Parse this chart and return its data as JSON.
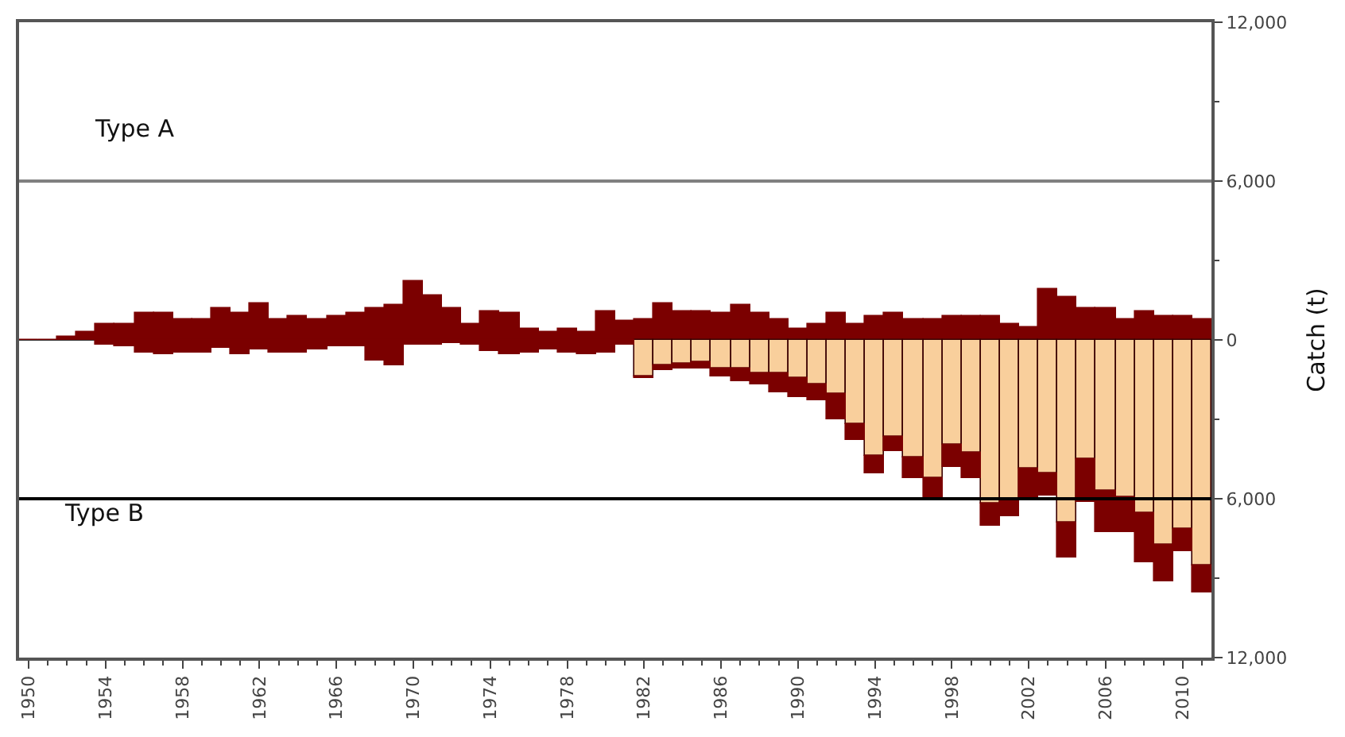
{
  "chart_data": {
    "type": "bar",
    "stacked": true,
    "ylabel": "Catch (t)",
    "x": [
      1950,
      1951,
      1952,
      1953,
      1954,
      1955,
      1956,
      1957,
      1958,
      1959,
      1960,
      1961,
      1962,
      1963,
      1964,
      1965,
      1966,
      1967,
      1968,
      1969,
      1970,
      1971,
      1972,
      1973,
      1974,
      1975,
      1976,
      1977,
      1978,
      1979,
      1980,
      1981,
      1982,
      1983,
      1984,
      1985,
      1986,
      1987,
      1988,
      1989,
      1990,
      1991,
      1992,
      1993,
      1994,
      1995,
      1996,
      1997,
      1998,
      1999,
      2000,
      2001,
      2002,
      2003,
      2004,
      2005,
      2006,
      2007,
      2008,
      2009,
      2010,
      2011
    ],
    "series": [
      {
        "color": "#7b0000",
        "values": [
          0,
          0,
          100,
          300,
          600,
          600,
          1000,
          1000,
          800,
          800,
          1200,
          1000,
          1400,
          800,
          900,
          800,
          900,
          1000,
          1200,
          1300,
          2200,
          1700,
          1200,
          600,
          1100,
          1000,
          400,
          300,
          400,
          300,
          1100,
          700,
          800,
          1400,
          1100,
          1100,
          1000,
          1300,
          1000,
          800,
          400,
          600,
          1000,
          600,
          900,
          1000,
          800,
          800,
          900,
          900,
          900,
          600,
          500,
          1900,
          1600,
          1200,
          1200,
          800,
          1100,
          900,
          900,
          800
        ]
      },
      {
        "color": "#f9cf9c",
        "values": [
          null,
          null,
          null,
          null,
          null,
          null,
          null,
          null,
          null,
          null,
          null,
          null,
          null,
          null,
          null,
          null,
          null,
          null,
          null,
          null,
          null,
          null,
          null,
          null,
          null,
          null,
          null,
          null,
          null,
          null,
          null,
          null,
          -1360,
          -960,
          -920,
          -860,
          -1060,
          -1100,
          -1260,
          -1260,
          -1460,
          -1660,
          -2060,
          -3160,
          -4360,
          -3660,
          -4460,
          -5200,
          -3960,
          -4260,
          -6160,
          -6000,
          -4860,
          -5060,
          -6920,
          -4520,
          -5720,
          -5920,
          -6520,
          -7760,
          -7120,
          -8520
        ]
      },
      {
        "color": "#7b0000",
        "values": [
          null,
          null,
          null,
          null,
          -160,
          -260,
          -460,
          -520,
          -460,
          -460,
          -320,
          -560,
          -360,
          -460,
          -460,
          -360,
          -260,
          -260,
          -760,
          -960,
          -160,
          -160,
          -120,
          -200,
          -400,
          -520,
          -460,
          -360,
          -460,
          -560,
          -460,
          -200,
          -100,
          -160,
          -140,
          -200,
          -300,
          -460,
          -400,
          -700,
          -700,
          -600,
          -960,
          -640,
          -700,
          -560,
          -740,
          -800,
          -840,
          -940,
          -840,
          -660,
          -1060,
          -800,
          -1280,
          -1600,
          -1540,
          -1340,
          -1880,
          -1360,
          -840,
          -1000
        ]
      }
    ],
    "xlim": [
      1949.5,
      2011.5
    ],
    "xticks": [
      1950,
      1954,
      1958,
      1962,
      1966,
      1970,
      1974,
      1978,
      1982,
      1986,
      1990,
      1994,
      1998,
      2002,
      2006,
      2010
    ],
    "ylim": [
      -12000,
      12000
    ],
    "yticks": [
      {
        "value": 12000,
        "label": "12,000"
      },
      {
        "value": 6000,
        "label": "6,000"
      },
      0,
      {
        "value": -6000,
        "label": "6,000"
      },
      {
        "value": -12000,
        "label": "12,000"
      }
    ],
    "ref_lines": [
      {
        "axis": "y",
        "value": 6000,
        "color": "#808080"
      },
      {
        "axis": "y",
        "value": -6000,
        "color": "#000000"
      }
    ],
    "annotations": [
      "Type A",
      "Type B"
    ],
    "grid": false
  }
}
